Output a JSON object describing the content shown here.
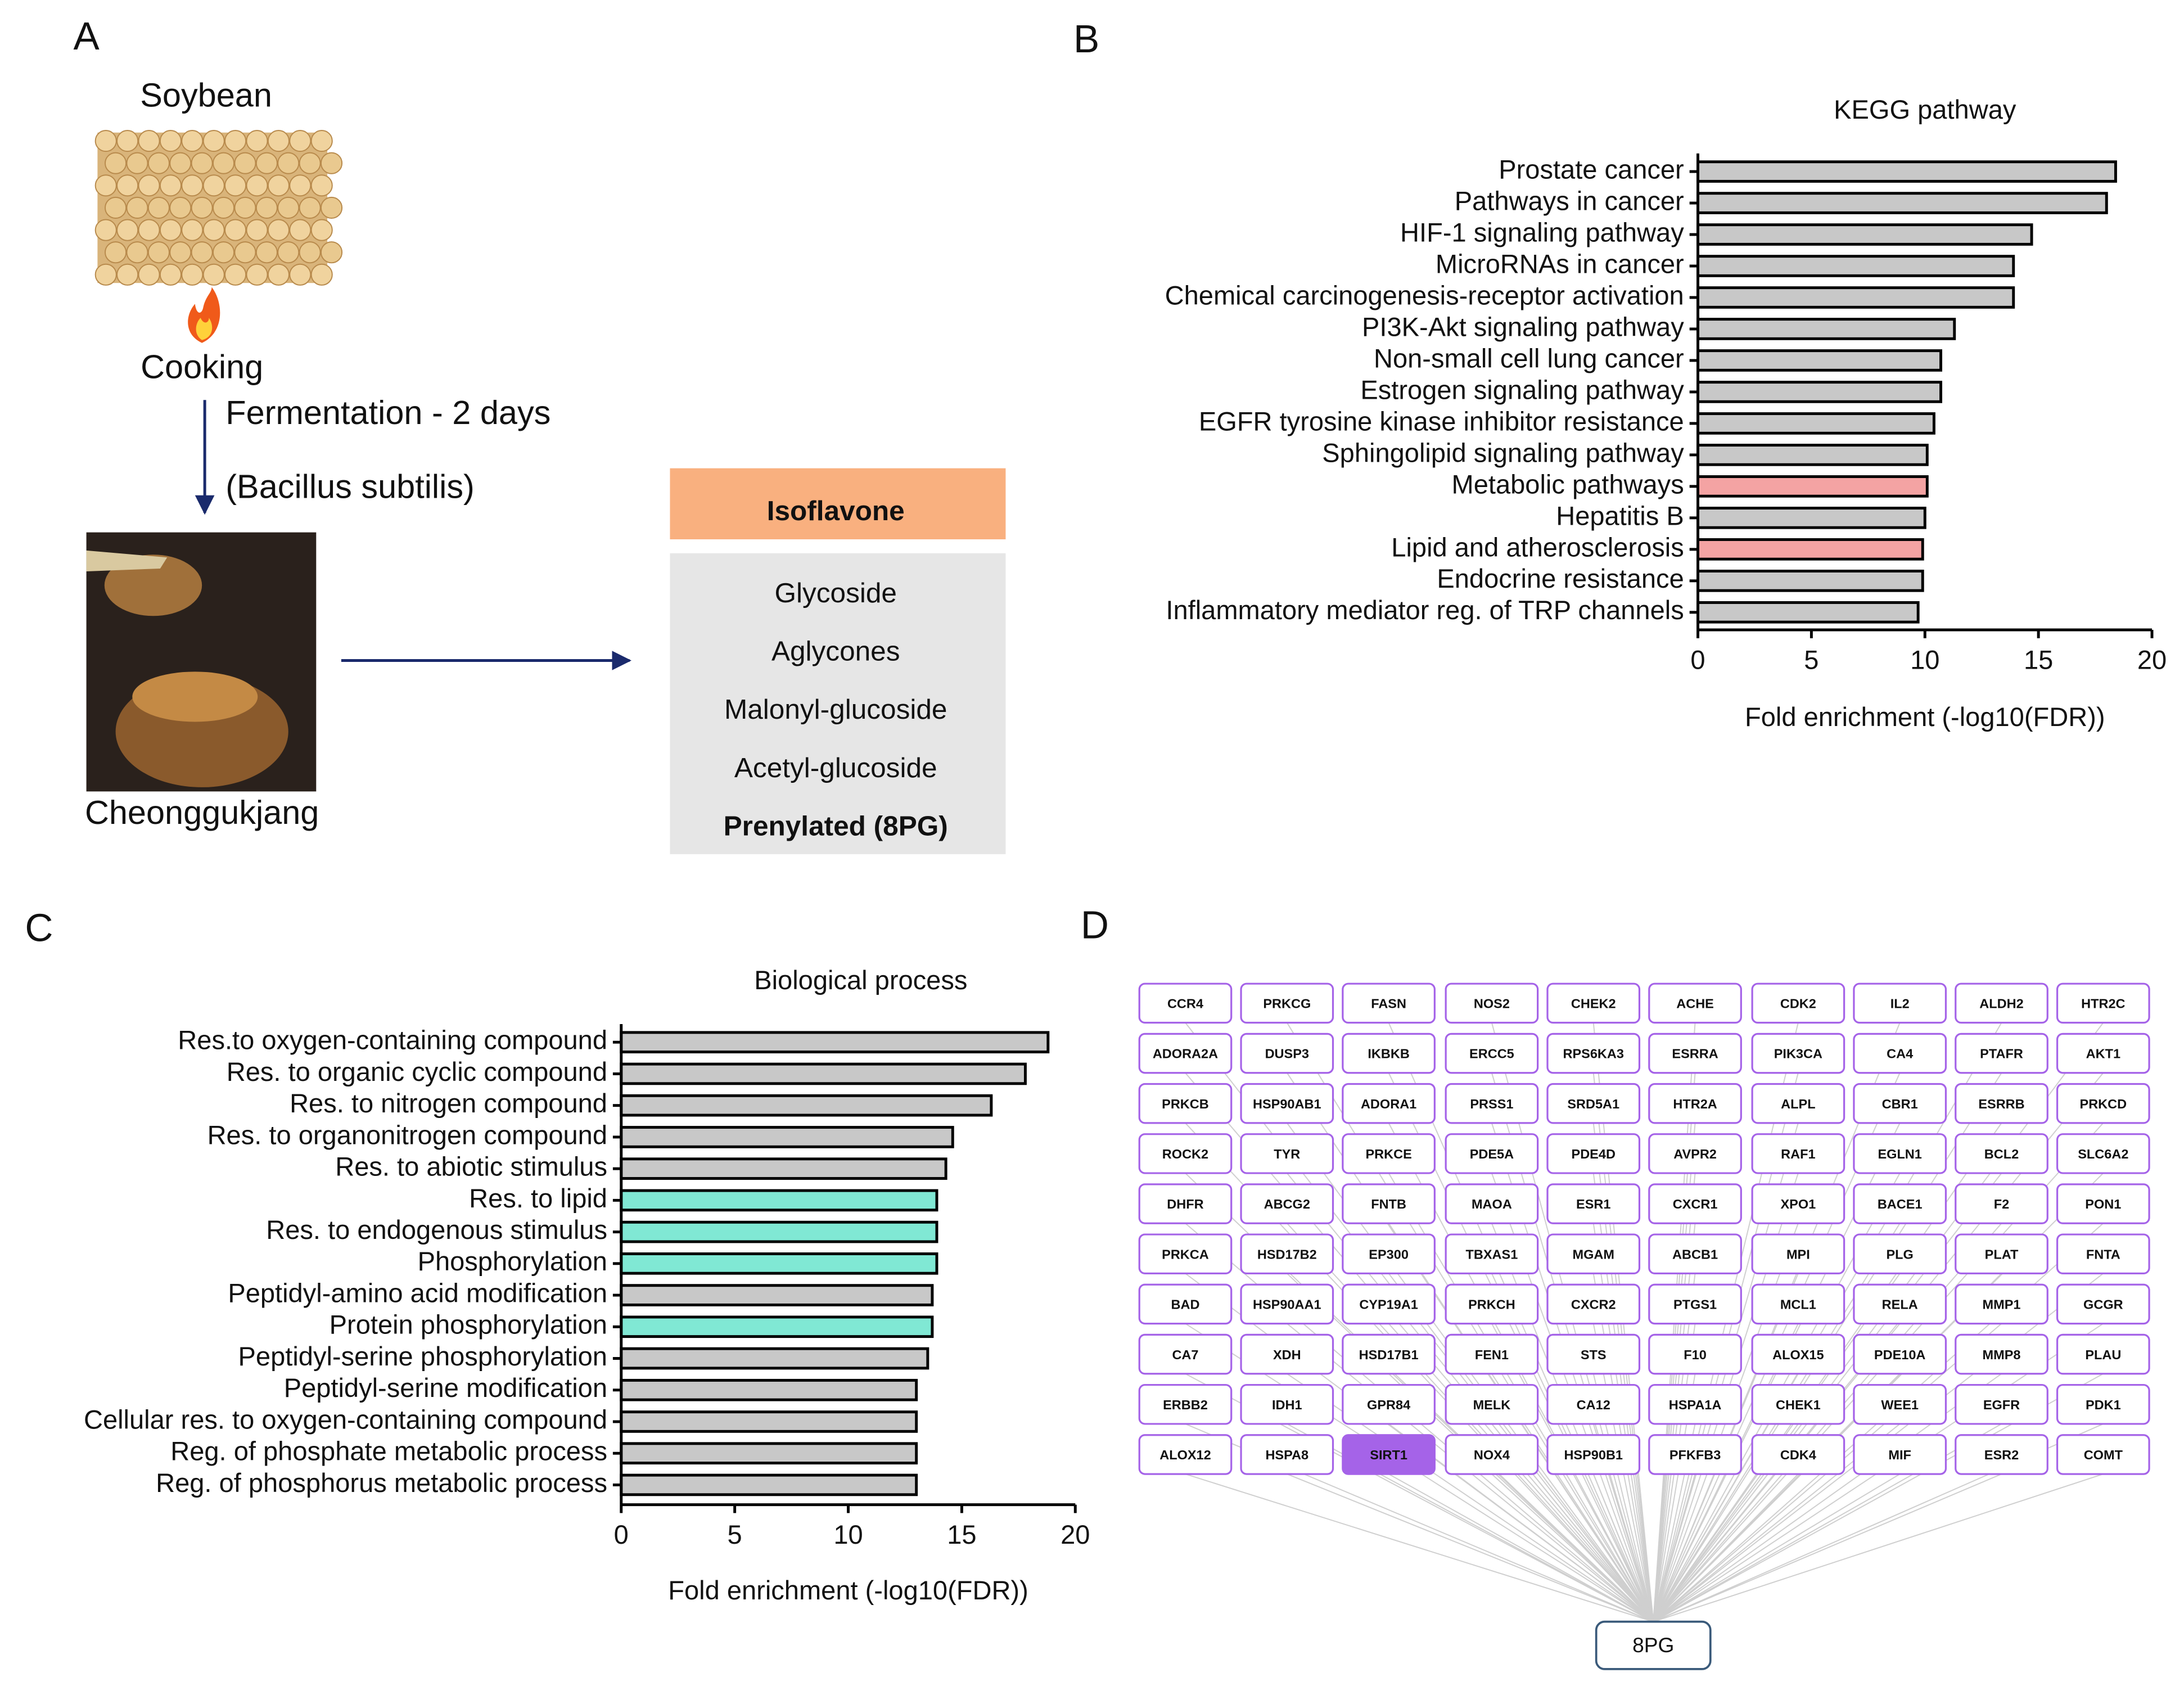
{
  "panel_a": {
    "letter": "A",
    "soybean": "Soybean",
    "cooking": "Cooking",
    "step": "Fermentation - 2 days",
    "organism": "(Bacillus subtilis)",
    "product": "Cheonggukjang",
    "table": {
      "header": "Isoflavone",
      "items": [
        "Glycoside",
        "Aglycones",
        "Malonyl-glucoside",
        "Acetyl-glucoside",
        "Prenylated   (8PG)"
      ]
    }
  },
  "chart_data": [
    {
      "letter": "B",
      "type": "barh",
      "title": "KEGG pathway",
      "x_label": "Fold enrichment (-log10(FDR))",
      "categories": [
        "Prostate cancer",
        "Pathways in cancer",
        "HIF-1 signaling pathway",
        "MicroRNAs in cancer",
        "Chemical carcinogenesis-receptor activation",
        "PI3K-Akt signaling pathway",
        "Non-small cell lung cancer",
        "Estrogen signaling pathway",
        "EGFR tyrosine kinase inhibitor resistance",
        "Sphingolipid signaling pathway",
        "Metabolic pathways",
        "Hepatitis B",
        "Lipid and atherosclerosis",
        "Endocrine resistance",
        "Inflammatory mediator reg. of TRP channels"
      ],
      "values": [
        18.4,
        18.0,
        14.7,
        13.9,
        13.9,
        11.3,
        10.7,
        10.7,
        10.4,
        10.1,
        10.1,
        10.0,
        9.9,
        9.9,
        9.7
      ],
      "colors": [
        "#c8c8c8",
        "#c8c8c8",
        "#c8c8c8",
        "#c8c8c8",
        "#c8c8c8",
        "#c8c8c8",
        "#c8c8c8",
        "#c8c8c8",
        "#c8c8c8",
        "#c8c8c8",
        "#f4a3a3",
        "#c8c8c8",
        "#f4a3a3",
        "#c8c8c8",
        "#c8c8c8"
      ],
      "xlim": [
        0,
        20
      ],
      "xticks": [
        0,
        5,
        10,
        15,
        20
      ]
    },
    {
      "letter": "C",
      "type": "barh",
      "title": "Biological process",
      "x_label": "Fold enrichment (-log10(FDR))",
      "categories": [
        "Res.to oxygen-containing compound",
        "Res. to organic cyclic compound",
        "Res. to nitrogen compound",
        "Res. to organonitrogen compound",
        "Res. to abiotic stimulus",
        "Res. to lipid",
        "Res. to endogenous stimulus",
        "Phosphorylation",
        "Peptidyl-amino acid modification",
        "Protein phosphorylation",
        "Peptidyl-serine phosphorylation",
        "Peptidyl-serine modification",
        "Cellular res. to oxygen-containing compound",
        "Reg. of phosphate metabolic process",
        "Reg. of phosphorus metabolic process"
      ],
      "values": [
        18.8,
        17.8,
        16.3,
        14.6,
        14.3,
        13.9,
        13.9,
        13.9,
        13.7,
        13.7,
        13.5,
        13.0,
        13.0,
        13.0,
        13.0
      ],
      "colors": [
        "#c8c8c8",
        "#c8c8c8",
        "#c8c8c8",
        "#c8c8c8",
        "#c8c8c8",
        "#80e8d4",
        "#80e8d4",
        "#80e8d4",
        "#c8c8c8",
        "#80e8d4",
        "#c8c8c8",
        "#c8c8c8",
        "#c8c8c8",
        "#c8c8c8",
        "#c8c8c8"
      ],
      "xlim": [
        0,
        20
      ],
      "xticks": [
        0,
        5,
        10,
        15,
        20
      ]
    }
  ],
  "panel_d": {
    "letter": "D",
    "center": "8PG",
    "rows": [
      [
        "CCR4",
        "PRKCG",
        "FASN",
        "NOS2",
        "CHEK2",
        "ACHE",
        "CDK2",
        "IL2",
        "ALDH2",
        "HTR2C"
      ],
      [
        "ADORA2A",
        "DUSP3",
        "IKBKB",
        "ERCC5",
        "RPS6KA3",
        "ESRRA",
        "PIK3CA",
        "CA4",
        "PTAFR",
        "AKT1"
      ],
      [
        "PRKCB",
        "HSP90AB1",
        "ADORA1",
        "PRSS1",
        "SRD5A1",
        "HTR2A",
        "ALPL",
        "CBR1",
        "ESRRB",
        "PRKCD"
      ],
      [
        "ROCK2",
        "TYR",
        "PRKCE",
        "PDE5A",
        "PDE4D",
        "AVPR2",
        "RAF1",
        "EGLN1",
        "BCL2",
        "SLC6A2"
      ],
      [
        "DHFR",
        "ABCG2",
        "FNTB",
        "MAOA",
        "ESR1",
        "CXCR1",
        "XPO1",
        "BACE1",
        "F2",
        "PON1"
      ],
      [
        "PRKCA",
        "HSD17B2",
        "EP300",
        "TBXAS1",
        "MGAM",
        "ABCB1",
        "MPI",
        "PLG",
        "PLAT",
        "FNTA"
      ],
      [
        "BAD",
        "HSP90AA1",
        "CYP19A1",
        "PRKCH",
        "CXCR2",
        "PTGS1",
        "MCL1",
        "RELA",
        "MMP1",
        "GCGR"
      ],
      [
        "CA7",
        "XDH",
        "HSD17B1",
        "FEN1",
        "STS",
        "F10",
        "ALOX15",
        "PDE10A",
        "MMP8",
        "PLAU"
      ],
      [
        "ERBB2",
        "IDH1",
        "GPR84",
        "MELK",
        "CA12",
        "HSPA1A",
        "CHEK1",
        "WEE1",
        "EGFR",
        "PDK1"
      ],
      [
        "ALOX12",
        "HSPA8",
        "SIRT1",
        "NOX4",
        "HSP90B1",
        "PFKFB3",
        "CDK4",
        "MIF",
        "ESR2",
        "COMT"
      ]
    ],
    "highlighted": [
      "SIRT1"
    ]
  }
}
